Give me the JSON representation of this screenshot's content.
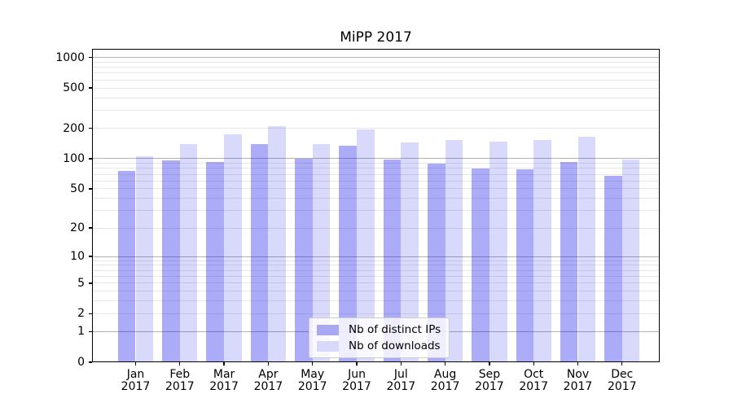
{
  "chart_data": {
    "type": "bar",
    "title": "MiPP 2017",
    "y_scale": "log1p",
    "ylim": [
      0,
      1010
    ],
    "y_ticks": [
      0,
      1,
      2,
      5,
      10,
      20,
      50,
      100,
      200,
      500,
      1000
    ],
    "y_tick_labels": [
      "0",
      "1",
      "2",
      "5",
      "10",
      "20",
      "50",
      "100",
      "200",
      "500",
      "1000"
    ],
    "categories": [
      "Jan",
      "Feb",
      "Mar",
      "Apr",
      "May",
      "Jun",
      "Jul",
      "Aug",
      "Sep",
      "Oct",
      "Nov",
      "Dec"
    ],
    "x_year": "2017",
    "series": [
      {
        "name": "Nb of distinct IPs",
        "color": "#a9a9f3",
        "color_rgba": "rgba(13,13,232,0.345)",
        "values": [
          76,
          97,
          93,
          140,
          100,
          134,
          99,
          90,
          80,
          78,
          93,
          67
        ]
      },
      {
        "name": "Nb of downloads",
        "color": "#d8d8fa",
        "color_rgba": "rgba(13,13,232,0.155)",
        "values": [
          106,
          140,
          176,
          209,
          140,
          197,
          145,
          154,
          148,
          153,
          164,
          99
        ]
      }
    ],
    "legend": {
      "position": "lower-center-inside",
      "entries": [
        "Nb of distinct IPs",
        "Nb of downloads"
      ]
    },
    "grid": {
      "on": true,
      "major_color": "#b2b2b2",
      "minor_color": "#e7e7e7",
      "major_at": [
        1,
        10,
        100,
        1000
      ],
      "minor_multiples": [
        2,
        3,
        4,
        5,
        6,
        7,
        8,
        9
      ]
    }
  }
}
